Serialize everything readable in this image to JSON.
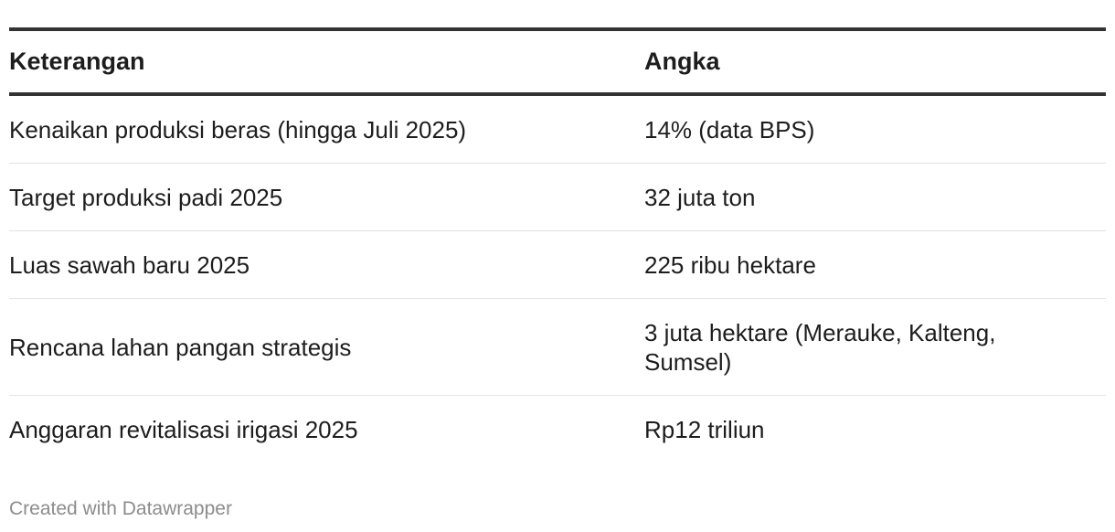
{
  "table": {
    "headers": [
      "Keterangan",
      "Angka"
    ],
    "rows": [
      [
        "Kenaikan produksi beras (hingga Juli 2025)",
        "14% (data BPS)"
      ],
      [
        "Target produksi padi 2025",
        "32 juta ton"
      ],
      [
        "Luas sawah baru 2025",
        "225 ribu hektare"
      ],
      [
        "Rencana lahan pangan strategis",
        "3 juta hektare (Merauke, Kalteng, Sumsel)"
      ],
      [
        "Anggaran revitalisasi irigasi 2025",
        "Rp12 triliun"
      ]
    ]
  },
  "footer": {
    "credit": "Created with Datawrapper"
  }
}
